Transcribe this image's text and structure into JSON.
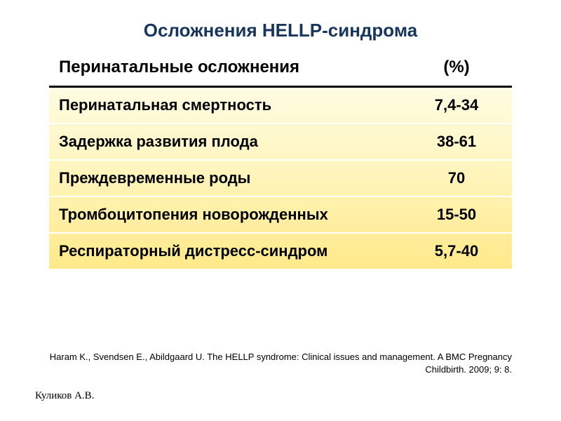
{
  "title": {
    "text": "Осложнения HELLP-синдрома",
    "color": "#17365d"
  },
  "table": {
    "header": {
      "label": "Перинатальные осложнения",
      "percent": "(%)"
    },
    "rows": [
      {
        "label": "Перинатальная смертность",
        "value": "7,4-34"
      },
      {
        "label": "Задержка развития плода",
        "value": "38-61"
      },
      {
        "label": "Преждевременные роды",
        "value": "70"
      },
      {
        "label": "Тромбоцитопения новорожденных",
        "value": "15-50"
      },
      {
        "label": "Респираторный дистресс-синдром",
        "value": "5,7-40"
      }
    ],
    "gradient_top": "#fffef2",
    "gradient_bottom": "#ffe98a",
    "row_separator": "#ffffff",
    "header_underline": "#000000",
    "text_color": "#000000",
    "font_size_header": 24,
    "font_size_cell": 22
  },
  "citation": {
    "line1": "Haram K., Svendsen E., Abildgaard U. The HELLP syndrome: Clinical issues and management. A BMC Pregnancy",
    "line2": "Childbirth. 2009; 9: 8."
  },
  "author": "Куликов А.В."
}
